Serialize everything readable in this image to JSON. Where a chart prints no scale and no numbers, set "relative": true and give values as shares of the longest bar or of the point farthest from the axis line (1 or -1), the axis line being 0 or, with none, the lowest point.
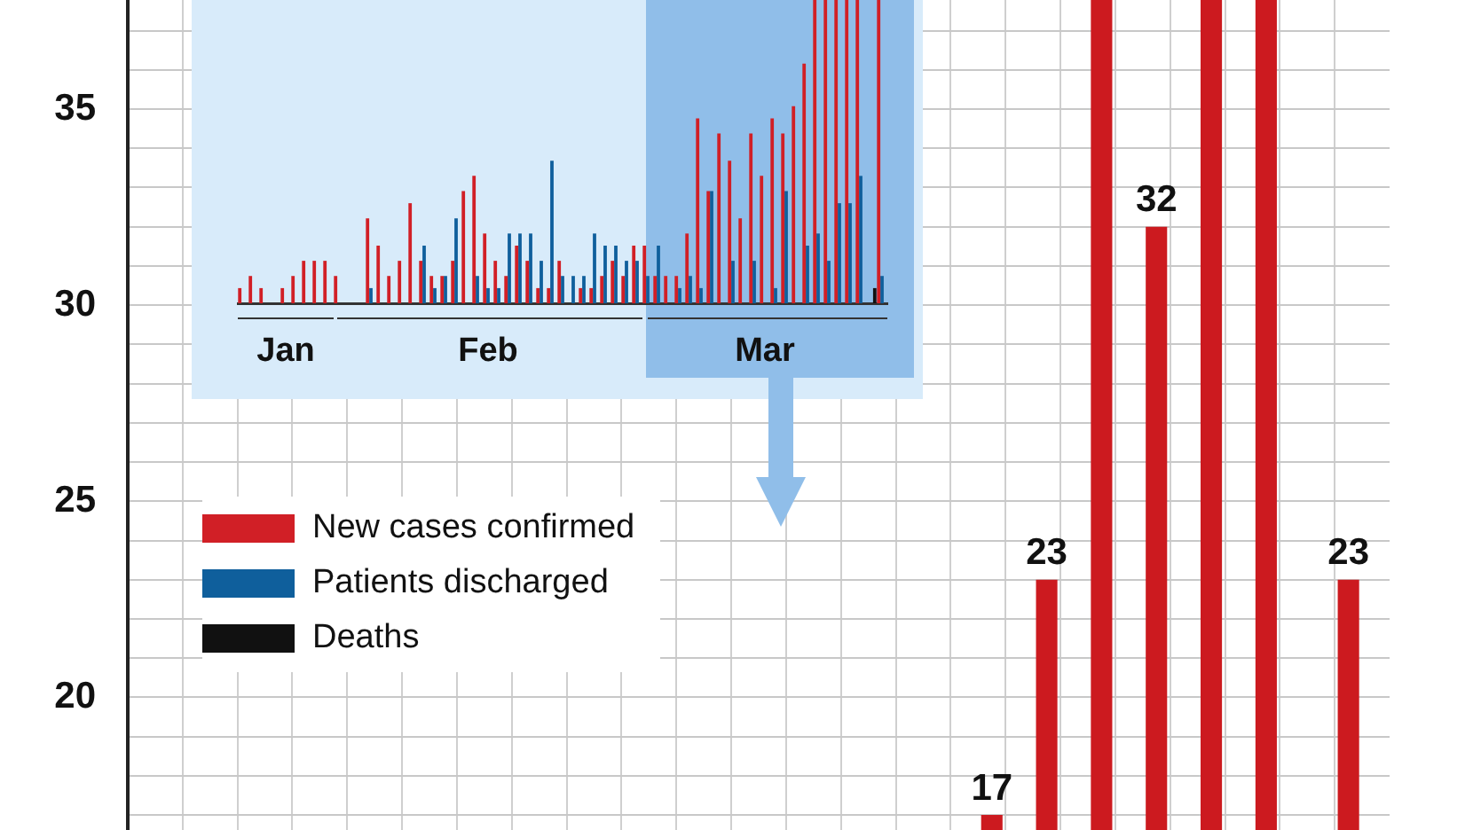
{
  "chart_data": [
    {
      "type": "bar",
      "categories": [
        null,
        null,
        null,
        null,
        null,
        null,
        null,
        null,
        null,
        null,
        null,
        null,
        null,
        null,
        null,
        null,
        null,
        null,
        null,
        null,
        null,
        null,
        null,
        null,
        null,
        null,
        null,
        null,
        null,
        null,
        null,
        null,
        null,
        null,
        null,
        null,
        null,
        null,
        null,
        null,
        null,
        null,
        null,
        null,
        null,
        null
      ],
      "values": [
        null,
        null,
        null,
        null,
        null,
        null,
        null,
        null,
        null,
        null,
        null,
        null,
        null,
        null,
        null,
        null,
        null,
        null,
        null,
        null,
        null,
        null,
        null,
        null,
        null,
        null,
        null,
        null,
        null,
        null,
        null,
        17,
        null,
        23,
        null,
        37.8,
        null,
        32,
        null,
        37.8,
        null,
        37.8,
        null,
        null,
        23,
        null
      ],
      "value_labels": [
        null,
        null,
        null,
        null,
        null,
        null,
        null,
        null,
        null,
        null,
        null,
        null,
        null,
        null,
        null,
        null,
        null,
        null,
        null,
        null,
        null,
        null,
        null,
        null,
        null,
        null,
        null,
        null,
        null,
        null,
        null,
        "17",
        null,
        "23",
        null,
        null,
        null,
        "32",
        null,
        null,
        null,
        null,
        null,
        null,
        "23",
        null
      ],
      "color": "#cc1a1f",
      "ylim": [
        16.6,
        37.8
      ],
      "yticks": [
        {
          "value": 17,
          "label": null
        },
        {
          "value": 18,
          "label": null
        },
        {
          "value": 19,
          "label": null
        },
        20,
        {
          "value": 21,
          "label": null
        },
        {
          "value": 22,
          "label": null
        },
        {
          "value": 23,
          "label": null
        },
        {
          "value": 24,
          "label": null
        },
        25,
        {
          "value": 26,
          "label": null
        },
        {
          "value": 27,
          "label": null
        },
        {
          "value": 28,
          "label": null
        },
        {
          "value": 29,
          "label": null
        },
        30,
        {
          "value": 31,
          "label": null
        },
        {
          "value": 32,
          "label": null
        },
        {
          "value": 33,
          "label": null
        },
        {
          "value": 34,
          "label": null
        },
        35,
        {
          "value": 36,
          "label": null
        },
        {
          "value": 37,
          "label": null
        }
      ],
      "grid": true,
      "tick_labels": "y"
    },
    {
      "type": "bar",
      "relative": true,
      "legend": "bottom",
      "tick_labels": "x",
      "categories": [
        null,
        null,
        null,
        null,
        "Jan",
        null,
        null,
        null,
        null,
        null,
        null,
        null,
        null,
        null,
        null,
        null,
        null,
        null,
        null,
        null,
        null,
        null,
        null,
        "Feb",
        null,
        null,
        null,
        null,
        null,
        null,
        null,
        null,
        null,
        null,
        null,
        null,
        null,
        null,
        null,
        null,
        null,
        null,
        null,
        null,
        null,
        null,
        null,
        null,
        null,
        "Mar",
        null,
        null,
        null,
        null,
        null,
        null,
        null,
        null,
        null,
        null,
        null
      ],
      "series": [
        {
          "name": "New cases confirmed",
          "color": "#d11f26",
          "values": [
            0.05,
            0.09,
            0.05,
            null,
            0.05,
            0.09,
            0.14,
            0.14,
            0.14,
            0.09,
            null,
            null,
            0.28,
            0.19,
            0.09,
            0.14,
            0.33,
            0.14,
            0.09,
            0.09,
            0.14,
            0.37,
            0.42,
            0.23,
            0.14,
            0.09,
            0.19,
            0.14,
            0.05,
            0.05,
            0.14,
            null,
            0.05,
            0.05,
            0.09,
            0.14,
            0.09,
            0.19,
            0.19,
            0.09,
            0.09,
            0.09,
            0.23,
            0.61,
            0.37,
            0.56,
            0.47,
            0.28,
            0.56,
            0.42,
            0.61,
            0.56,
            0.65,
            0.79,
            1,
            1,
            1,
            1,
            1,
            null,
            1
          ]
        },
        {
          "name": "Patients discharged",
          "color": "#0f5f9c",
          "values": [
            null,
            null,
            null,
            null,
            null,
            null,
            null,
            null,
            null,
            null,
            null,
            null,
            0.05,
            null,
            null,
            null,
            null,
            0.19,
            0.05,
            0.09,
            0.28,
            null,
            0.09,
            0.05,
            0.05,
            0.23,
            0.23,
            0.23,
            0.14,
            0.47,
            0.09,
            0.09,
            0.09,
            0.23,
            0.19,
            0.19,
            0.14,
            0.14,
            0.09,
            0.19,
            null,
            0.05,
            0.09,
            0.05,
            0.37,
            null,
            0.14,
            null,
            0.14,
            null,
            0.05,
            0.37,
            null,
            0.19,
            0.23,
            0.14,
            0.33,
            0.33,
            0.42,
            null,
            0.09
          ]
        },
        {
          "name": "Deaths",
          "color": "#111111",
          "values": [
            null,
            null,
            null,
            null,
            null,
            null,
            null,
            null,
            null,
            null,
            null,
            null,
            null,
            null,
            null,
            null,
            null,
            null,
            null,
            null,
            null,
            null,
            null,
            null,
            null,
            null,
            null,
            null,
            null,
            null,
            null,
            null,
            null,
            null,
            null,
            null,
            null,
            null,
            null,
            null,
            null,
            null,
            null,
            null,
            null,
            null,
            null,
            null,
            null,
            null,
            null,
            null,
            null,
            null,
            null,
            null,
            null,
            null,
            null,
            0.05,
            null
          ]
        }
      ]
    }
  ]
}
